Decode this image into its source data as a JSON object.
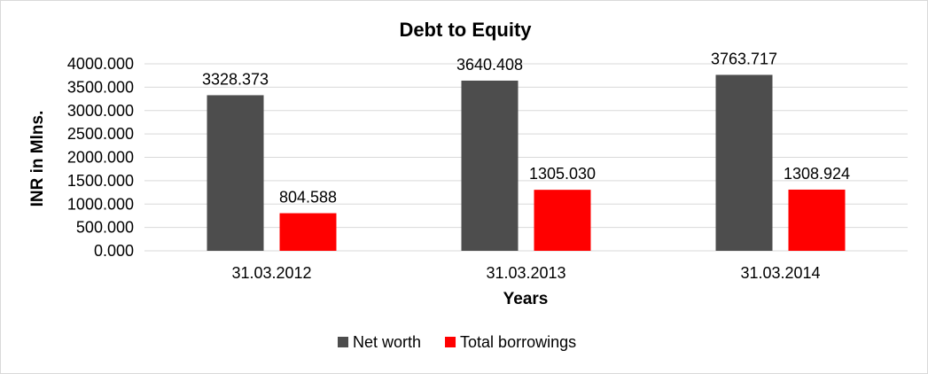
{
  "chart_data": {
    "type": "bar",
    "title": "Debt to Equity",
    "xlabel": "Years",
    "ylabel": "INR in Mlns.",
    "categories": [
      "31.03.2012",
      "31.03.2013",
      "31.03.2014"
    ],
    "series": [
      {
        "name": "Net worth",
        "color": "#4d4d4d",
        "values": [
          3328.373,
          3640.408,
          3763.717
        ]
      },
      {
        "name": "Total borrowings",
        "color": "#ff0000",
        "values": [
          804.588,
          1305.03,
          1308.924
        ]
      }
    ],
    "ylim": [
      0,
      4000
    ],
    "yticks": [
      0,
      500,
      1000,
      1500,
      2000,
      2500,
      3000,
      3500,
      4000
    ],
    "ytick_decimals": 3,
    "value_decimals": 3,
    "grid": true,
    "legend_position": "bottom"
  }
}
